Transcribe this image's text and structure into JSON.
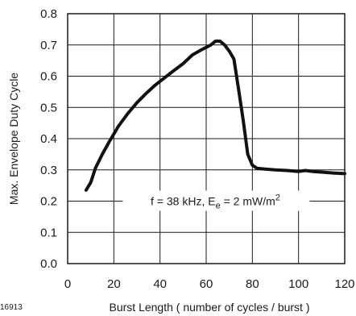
{
  "chart_data": {
    "type": "line",
    "xlabel": "Burst Length ( number of cycles / burst )",
    "ylabel": "Max. Envelope Duty Cycle",
    "xlim": [
      0,
      120
    ],
    "ylim": [
      0,
      0.8
    ],
    "x_ticks": [
      "0",
      "20",
      "40",
      "60",
      "80",
      "100",
      "120"
    ],
    "y_ticks": [
      "0.0",
      "0.1",
      "0.2",
      "0.3",
      "0.4",
      "0.5",
      "0.6",
      "0.7",
      "0.8"
    ],
    "grid": "horizontal major lines at each y tick, vertical major lines at each x tick",
    "figure_code": "16913",
    "annotation": {
      "prefix": "f = 38 kHz, E",
      "subscript": "e",
      "middle": " = 2 mW/m",
      "superscript": "2",
      "x": 64,
      "y": 0.2
    },
    "series": [
      {
        "x": [
          8,
          10,
          12,
          15,
          18,
          22,
          26,
          30,
          34,
          38,
          42,
          46,
          50,
          54,
          58,
          62,
          64,
          66,
          68,
          70,
          72,
          74,
          76,
          78,
          80,
          82,
          85,
          90,
          95,
          100,
          103,
          106,
          110,
          115,
          120
        ],
        "y": [
          0.235,
          0.26,
          0.305,
          0.35,
          0.39,
          0.44,
          0.48,
          0.515,
          0.545,
          0.572,
          0.595,
          0.618,
          0.64,
          0.668,
          0.685,
          0.7,
          0.712,
          0.712,
          0.7,
          0.68,
          0.655,
          0.56,
          0.46,
          0.35,
          0.315,
          0.305,
          0.303,
          0.3,
          0.298,
          0.295,
          0.298,
          0.295,
          0.293,
          0.29,
          0.288
        ]
      }
    ]
  }
}
